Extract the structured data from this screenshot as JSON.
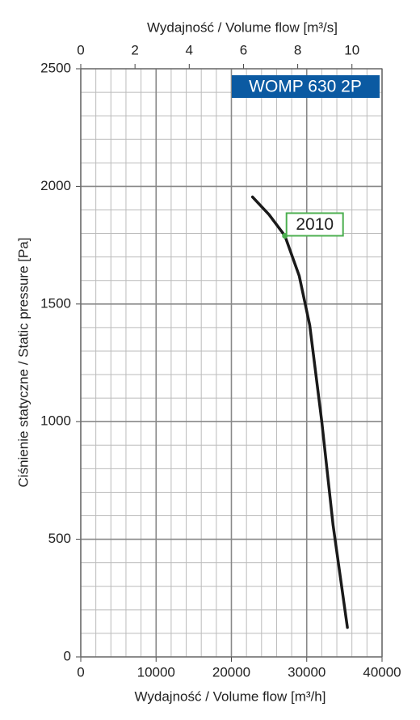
{
  "chart_data": {
    "type": "line",
    "title": "WOMP 630 2P",
    "xlabel": "Wydajność / Volume flow [m³/h]",
    "ylabel": "Ciśnienie statyczne / Static pressure [Pa]",
    "x2label": "Wydajność / Volume flow [m³/s]",
    "xlim": [
      0,
      40000
    ],
    "xticks": [
      0,
      10000,
      20000,
      30000,
      40000
    ],
    "ylim": [
      0,
      2500
    ],
    "yticks": [
      0,
      500,
      1000,
      1500,
      2000,
      2500
    ],
    "x2lim": [
      0,
      11.11
    ],
    "x2ticks": [
      0,
      2,
      4,
      6,
      8,
      10
    ],
    "grid": true,
    "minor_grid": {
      "x": 2000,
      "y": 100
    },
    "title_color": "#0b5aa2",
    "series": [
      {
        "color": "#1a1a1a",
        "x": [
          22800,
          25000,
          27100,
          29000,
          30400,
          32000,
          33500,
          35400
        ],
        "values": [
          1955,
          1880,
          1790,
          1620,
          1410,
          1000,
          560,
          125
        ]
      }
    ],
    "annotations": [
      {
        "text": "2010",
        "x": 27100,
        "y": 1790,
        "color": "#4caf50"
      }
    ]
  }
}
